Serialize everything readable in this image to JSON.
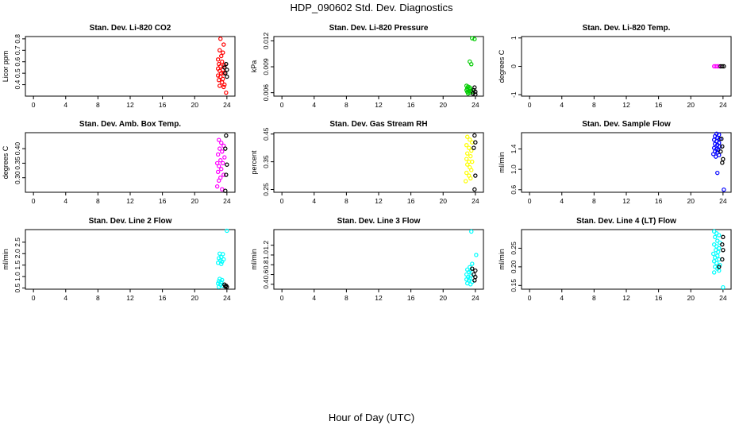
{
  "page": {
    "title": "HDP_090602  Std. Dev. Diagnostics",
    "xlabel": "Hour of Day (UTC)"
  },
  "chart_data": [
    {
      "type": "scatter",
      "title": "Stan. Dev. Li-820 CO2",
      "ylabel": "Licor ppm",
      "xlim": [
        -1,
        25
      ],
      "ylim": [
        0.3,
        0.82
      ],
      "xticks": [
        0,
        4,
        8,
        12,
        16,
        20,
        24
      ],
      "yticks": [
        0.4,
        0.5,
        0.6,
        0.7,
        0.8
      ],
      "series": [
        {
          "name": "red",
          "color": "#ff0000",
          "points": [
            [
              23.2,
              0.8
            ],
            [
              23.6,
              0.75
            ],
            [
              23.1,
              0.7
            ],
            [
              23.5,
              0.68
            ],
            [
              23.3,
              0.65
            ],
            [
              22.9,
              0.62
            ],
            [
              23.4,
              0.6
            ],
            [
              23.0,
              0.58
            ],
            [
              23.7,
              0.57
            ],
            [
              23.2,
              0.56
            ],
            [
              22.9,
              0.54
            ],
            [
              23.5,
              0.53
            ],
            [
              23.1,
              0.52
            ],
            [
              23.3,
              0.5
            ],
            [
              23.6,
              0.5
            ],
            [
              22.9,
              0.48
            ],
            [
              23.2,
              0.47
            ],
            [
              23.5,
              0.45
            ],
            [
              23.0,
              0.44
            ],
            [
              23.4,
              0.42
            ],
            [
              23.7,
              0.4
            ],
            [
              23.1,
              0.39
            ],
            [
              23.6,
              0.38
            ],
            [
              23.9,
              0.33
            ]
          ]
        },
        {
          "name": "black",
          "color": "#000000",
          "points": [
            [
              23.9,
              0.58
            ],
            [
              23.7,
              0.55
            ],
            [
              24.0,
              0.53
            ],
            [
              23.8,
              0.5
            ],
            [
              24.0,
              0.47
            ]
          ]
        }
      ]
    },
    {
      "type": "scatter",
      "title": "Stan. Dev. Li-820 Pressure",
      "ylabel": "kPa",
      "xlim": [
        -1,
        25
      ],
      "ylim": [
        0.0056,
        0.0125
      ],
      "xticks": [
        0,
        4,
        8,
        12,
        16,
        20,
        24
      ],
      "yticks": [
        0.006,
        0.009,
        0.012
      ],
      "series": [
        {
          "name": "green",
          "color": "#00cc00",
          "points": [
            [
              23.6,
              0.0123
            ],
            [
              23.9,
              0.0122
            ],
            [
              23.3,
              0.0096
            ],
            [
              23.5,
              0.0093
            ],
            [
              22.9,
              0.0068
            ],
            [
              23.1,
              0.0067
            ],
            [
              23.3,
              0.0066
            ],
            [
              23.0,
              0.0065
            ],
            [
              23.4,
              0.0064
            ],
            [
              22.9,
              0.0063
            ],
            [
              23.2,
              0.0062
            ],
            [
              23.5,
              0.0062
            ],
            [
              23.0,
              0.0061
            ],
            [
              23.3,
              0.006
            ],
            [
              23.6,
              0.0061
            ],
            [
              23.1,
              0.0059
            ]
          ]
        },
        {
          "name": "black",
          "color": "#000000",
          "points": [
            [
              23.9,
              0.0066
            ],
            [
              23.8,
              0.0063
            ],
            [
              24.0,
              0.0061
            ],
            [
              23.7,
              0.0059
            ],
            [
              24.0,
              0.0058
            ]
          ]
        }
      ]
    },
    {
      "type": "scatter",
      "title": "Stan. Dev. Li-820 Temp.",
      "ylabel": "degrees C",
      "xlim": [
        -1,
        25
      ],
      "ylim": [
        -1.05,
        1.05
      ],
      "xticks": [
        0,
        4,
        8,
        12,
        16,
        20,
        24
      ],
      "yticks": [
        -1.0,
        0.0,
        1.0
      ],
      "series": [
        {
          "name": "magenta",
          "color": "#ff00ff",
          "points": [
            [
              22.9,
              0.0
            ],
            [
              23.1,
              0.0
            ],
            [
              23.3,
              0.0
            ],
            [
              23.5,
              0.0
            ]
          ]
        },
        {
          "name": "black",
          "color": "#000000",
          "points": [
            [
              23.7,
              0.0
            ],
            [
              23.9,
              0.0
            ],
            [
              24.1,
              0.0
            ]
          ]
        }
      ]
    },
    {
      "type": "scatter",
      "title": "Stan. Dev. Amb. Box Temp.",
      "ylabel": "degrees C",
      "xlim": [
        -1,
        25
      ],
      "ylim": [
        0.25,
        0.455
      ],
      "xticks": [
        0,
        4,
        8,
        12,
        16,
        20,
        24
      ],
      "yticks": [
        0.3,
        0.35,
        0.4
      ],
      "series": [
        {
          "name": "magenta",
          "color": "#ff00ff",
          "points": [
            [
              23.0,
              0.43
            ],
            [
              23.3,
              0.42
            ],
            [
              23.6,
              0.41
            ],
            [
              23.1,
              0.4
            ],
            [
              23.4,
              0.39
            ],
            [
              22.9,
              0.38
            ],
            [
              23.7,
              0.37
            ],
            [
              23.2,
              0.36
            ],
            [
              22.8,
              0.35
            ],
            [
              23.5,
              0.35
            ],
            [
              23.0,
              0.34
            ],
            [
              23.3,
              0.33
            ],
            [
              22.9,
              0.32
            ],
            [
              23.6,
              0.31
            ],
            [
              23.2,
              0.3
            ],
            [
              23.0,
              0.29
            ],
            [
              22.8,
              0.27
            ],
            [
              23.4,
              0.26
            ]
          ]
        },
        {
          "name": "black",
          "color": "#000000",
          "points": [
            [
              23.9,
              0.445
            ],
            [
              23.8,
              0.4
            ],
            [
              24.0,
              0.345
            ],
            [
              23.9,
              0.31
            ],
            [
              23.8,
              0.255
            ]
          ]
        }
      ]
    },
    {
      "type": "scatter",
      "title": "Stan. Dev. Gas Stream RH",
      "ylabel": "percent",
      "xlim": [
        -1,
        25
      ],
      "ylim": [
        0.24,
        0.455
      ],
      "xticks": [
        0,
        4,
        8,
        12,
        16,
        20,
        24
      ],
      "yticks": [
        0.25,
        0.35,
        0.45
      ],
      "series": [
        {
          "name": "yellow",
          "color": "#ffff00",
          "points": [
            [
              23.0,
              0.44
            ],
            [
              23.3,
              0.43
            ],
            [
              23.6,
              0.42
            ],
            [
              22.9,
              0.41
            ],
            [
              23.2,
              0.4
            ],
            [
              23.5,
              0.39
            ],
            [
              23.0,
              0.38
            ],
            [
              23.4,
              0.37
            ],
            [
              22.9,
              0.36
            ],
            [
              23.2,
              0.35
            ],
            [
              23.6,
              0.35
            ],
            [
              23.0,
              0.34
            ],
            [
              23.3,
              0.33
            ],
            [
              23.5,
              0.32
            ],
            [
              22.9,
              0.31
            ],
            [
              23.2,
              0.3
            ],
            [
              23.4,
              0.29
            ],
            [
              22.8,
              0.28
            ]
          ]
        },
        {
          "name": "black",
          "color": "#000000",
          "points": [
            [
              23.9,
              0.445
            ],
            [
              24.0,
              0.42
            ],
            [
              23.8,
              0.4
            ],
            [
              24.0,
              0.3
            ],
            [
              23.9,
              0.25
            ]
          ]
        }
      ]
    },
    {
      "type": "scatter",
      "title": "Stan. Dev. Sample Flow",
      "ylabel": "ml/min",
      "xlim": [
        -1,
        25
      ],
      "ylim": [
        0.55,
        1.72
      ],
      "xticks": [
        0,
        4,
        8,
        12,
        16,
        20,
        24
      ],
      "yticks": [
        0.6,
        1.0,
        1.4
      ],
      "series": [
        {
          "name": "blue",
          "color": "#0000ff",
          "points": [
            [
              23.2,
              1.7
            ],
            [
              23.5,
              1.68
            ],
            [
              23.0,
              1.65
            ],
            [
              23.3,
              1.62
            ],
            [
              23.6,
              1.6
            ],
            [
              22.9,
              1.58
            ],
            [
              23.2,
              1.55
            ],
            [
              23.5,
              1.52
            ],
            [
              23.0,
              1.5
            ],
            [
              23.3,
              1.48
            ],
            [
              23.6,
              1.45
            ],
            [
              22.9,
              1.42
            ],
            [
              23.2,
              1.4
            ],
            [
              23.4,
              1.38
            ],
            [
              23.0,
              1.35
            ],
            [
              23.3,
              1.33
            ],
            [
              22.8,
              1.3
            ],
            [
              23.5,
              1.28
            ],
            [
              23.1,
              1.25
            ],
            [
              23.3,
              0.93
            ]
          ]
        },
        {
          "name": "black",
          "color": "#000000",
          "points": [
            [
              23.8,
              1.6
            ],
            [
              23.9,
              1.45
            ],
            [
              23.7,
              1.35
            ],
            [
              24.0,
              1.2
            ],
            [
              23.9,
              1.13
            ]
          ]
        },
        {
          "name": "blue2",
          "color": "#0000ff",
          "points": [
            [
              24.1,
              0.6
            ]
          ]
        }
      ]
    },
    {
      "type": "scatter",
      "title": "Stan. Dev. Line 2 Flow",
      "ylabel": "ml/min",
      "xlim": [
        -1,
        25
      ],
      "ylim": [
        0.45,
        3.05
      ],
      "xticks": [
        0,
        4,
        8,
        12,
        16,
        20,
        24
      ],
      "yticks": [
        0.5,
        1.0,
        1.5,
        2.0,
        2.5
      ],
      "series": [
        {
          "name": "cyan",
          "color": "#00ffff",
          "points": [
            [
              24.0,
              3.0
            ],
            [
              23.1,
              2.0
            ],
            [
              23.5,
              1.98
            ],
            [
              23.3,
              1.85
            ],
            [
              23.0,
              1.8
            ],
            [
              23.6,
              1.75
            ],
            [
              23.2,
              1.7
            ],
            [
              23.4,
              1.65
            ],
            [
              22.9,
              1.6
            ],
            [
              23.3,
              1.55
            ],
            [
              23.1,
              0.9
            ],
            [
              23.4,
              0.85
            ],
            [
              23.0,
              0.8
            ],
            [
              23.3,
              0.75
            ],
            [
              22.9,
              0.7
            ],
            [
              23.2,
              0.65
            ],
            [
              23.5,
              0.6
            ],
            [
              23.0,
              0.55
            ]
          ]
        },
        {
          "name": "black",
          "color": "#000000",
          "points": [
            [
              23.7,
              0.65
            ],
            [
              23.9,
              0.6
            ],
            [
              23.8,
              0.57
            ],
            [
              24.0,
              0.55
            ]
          ]
        }
      ]
    },
    {
      "type": "scatter",
      "title": "Stan. Dev. Line 3 Flow",
      "ylabel": "ml/min",
      "xlim": [
        -1,
        25
      ],
      "ylim": [
        0.3,
        1.52
      ],
      "xticks": [
        0,
        4,
        8,
        12,
        16,
        20,
        24
      ],
      "yticks": [
        0.4,
        0.6,
        0.8,
        1.0,
        1.2
      ],
      "series": [
        {
          "name": "cyan",
          "color": "#00ffff",
          "points": [
            [
              23.5,
              1.48
            ],
            [
              24.1,
              1.0
            ],
            [
              23.6,
              0.82
            ],
            [
              23.3,
              0.75
            ],
            [
              23.0,
              0.7
            ],
            [
              23.4,
              0.68
            ],
            [
              23.2,
              0.65
            ],
            [
              22.9,
              0.6
            ],
            [
              23.5,
              0.58
            ],
            [
              23.1,
              0.55
            ],
            [
              23.3,
              0.52
            ],
            [
              22.9,
              0.5
            ],
            [
              23.2,
              0.48
            ],
            [
              23.6,
              0.45
            ],
            [
              23.0,
              0.42
            ],
            [
              23.4,
              0.4
            ]
          ]
        },
        {
          "name": "black",
          "color": "#000000",
          "points": [
            [
              23.6,
              0.72
            ],
            [
              24.0,
              0.68
            ],
            [
              23.8,
              0.6
            ],
            [
              24.0,
              0.55
            ],
            [
              23.9,
              0.48
            ]
          ]
        }
      ]
    },
    {
      "type": "scatter",
      "title": "Stan. Dev. Line 4 (LT) Flow",
      "ylabel": "ml/min",
      "xlim": [
        -1,
        25
      ],
      "ylim": [
        0.14,
        0.3
      ],
      "xticks": [
        0,
        4,
        8,
        12,
        16,
        20,
        24
      ],
      "yticks": [
        0.15,
        0.2,
        0.25
      ],
      "series": [
        {
          "name": "cyan",
          "color": "#00ffff",
          "points": [
            [
              22.9,
              0.295
            ],
            [
              23.2,
              0.29
            ],
            [
              23.5,
              0.285
            ],
            [
              23.0,
              0.28
            ],
            [
              23.3,
              0.27
            ],
            [
              23.6,
              0.265
            ],
            [
              22.9,
              0.26
            ],
            [
              23.2,
              0.255
            ],
            [
              23.5,
              0.25
            ],
            [
              23.1,
              0.245
            ],
            [
              23.4,
              0.24
            ],
            [
              22.8,
              0.235
            ],
            [
              23.3,
              0.23
            ],
            [
              23.0,
              0.225
            ],
            [
              23.5,
              0.22
            ],
            [
              22.9,
              0.215
            ],
            [
              23.2,
              0.21
            ],
            [
              23.6,
              0.205
            ],
            [
              23.0,
              0.2
            ],
            [
              23.3,
              0.195
            ],
            [
              23.5,
              0.19
            ],
            [
              22.9,
              0.185
            ],
            [
              24.0,
              0.145
            ]
          ]
        },
        {
          "name": "black",
          "color": "#000000",
          "points": [
            [
              24.0,
              0.28
            ],
            [
              23.9,
              0.26
            ],
            [
              24.0,
              0.245
            ],
            [
              23.9,
              0.22
            ],
            [
              23.5,
              0.2
            ]
          ]
        }
      ]
    }
  ]
}
